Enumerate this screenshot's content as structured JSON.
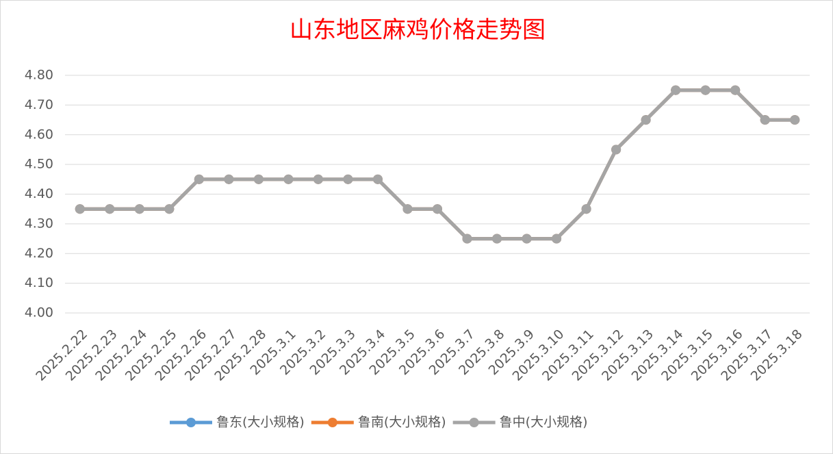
{
  "chart_data": {
    "type": "line",
    "title": "山东地区麻鸡价格走势图",
    "categories": [
      "2025.2.22",
      "2025.2.23",
      "2025.2.24",
      "2025.2.25",
      "2025.2.26",
      "2025.2.27",
      "2025.2.28",
      "2025.3.1",
      "2025.3.2",
      "2025.3.3",
      "2025.3.4",
      "2025.3.5",
      "2025.3.6",
      "2025.3.7",
      "2025.3.8",
      "2025.3.9",
      "2025.3.10",
      "2025.3.11",
      "2025.3.12",
      "2025.3.13",
      "2025.3.14",
      "2025.3.15",
      "2025.3.16",
      "2025.3.17",
      "2025.3.18"
    ],
    "series": [
      {
        "name": "鲁东(大小规格)",
        "color": "#5b9bd5",
        "values": [
          4.35,
          4.35,
          4.35,
          4.35,
          4.45,
          4.45,
          4.45,
          4.45,
          4.45,
          4.45,
          4.45,
          4.35,
          4.35,
          4.25,
          4.25,
          4.25,
          4.25,
          4.35,
          4.55,
          4.65,
          4.75,
          4.75,
          4.75,
          4.65,
          4.65
        ]
      },
      {
        "name": "鲁南(大小规格)",
        "color": "#ed7d31",
        "values": [
          4.35,
          4.35,
          4.35,
          4.35,
          4.45,
          4.45,
          4.45,
          4.45,
          4.45,
          4.45,
          4.45,
          4.35,
          4.35,
          4.25,
          4.25,
          4.25,
          4.25,
          4.35,
          4.55,
          4.65,
          4.75,
          4.75,
          4.75,
          4.65,
          4.65
        ]
      },
      {
        "name": "鲁中(大小规格)",
        "color": "#a5a5a5",
        "values": [
          4.35,
          4.35,
          4.35,
          4.35,
          4.45,
          4.45,
          4.45,
          4.45,
          4.45,
          4.45,
          4.45,
          4.35,
          4.35,
          4.25,
          4.25,
          4.25,
          4.25,
          4.35,
          4.55,
          4.65,
          4.75,
          4.75,
          4.75,
          4.65,
          4.65
        ]
      }
    ],
    "ylim": [
      4.0,
      4.8
    ],
    "yticks": [
      {
        "value": 4.0,
        "label": "4.00"
      },
      {
        "value": 4.1,
        "label": "4.10"
      },
      {
        "value": 4.2,
        "label": "4.20"
      },
      {
        "value": 4.3,
        "label": "4.30"
      },
      {
        "value": 4.4,
        "label": "4.40"
      },
      {
        "value": 4.5,
        "label": "4.50"
      },
      {
        "value": 4.6,
        "label": "4.60"
      },
      {
        "value": 4.7,
        "label": "4.70"
      },
      {
        "value": 4.8,
        "label": "4.80"
      }
    ],
    "grid": true,
    "legend": "bottom"
  }
}
